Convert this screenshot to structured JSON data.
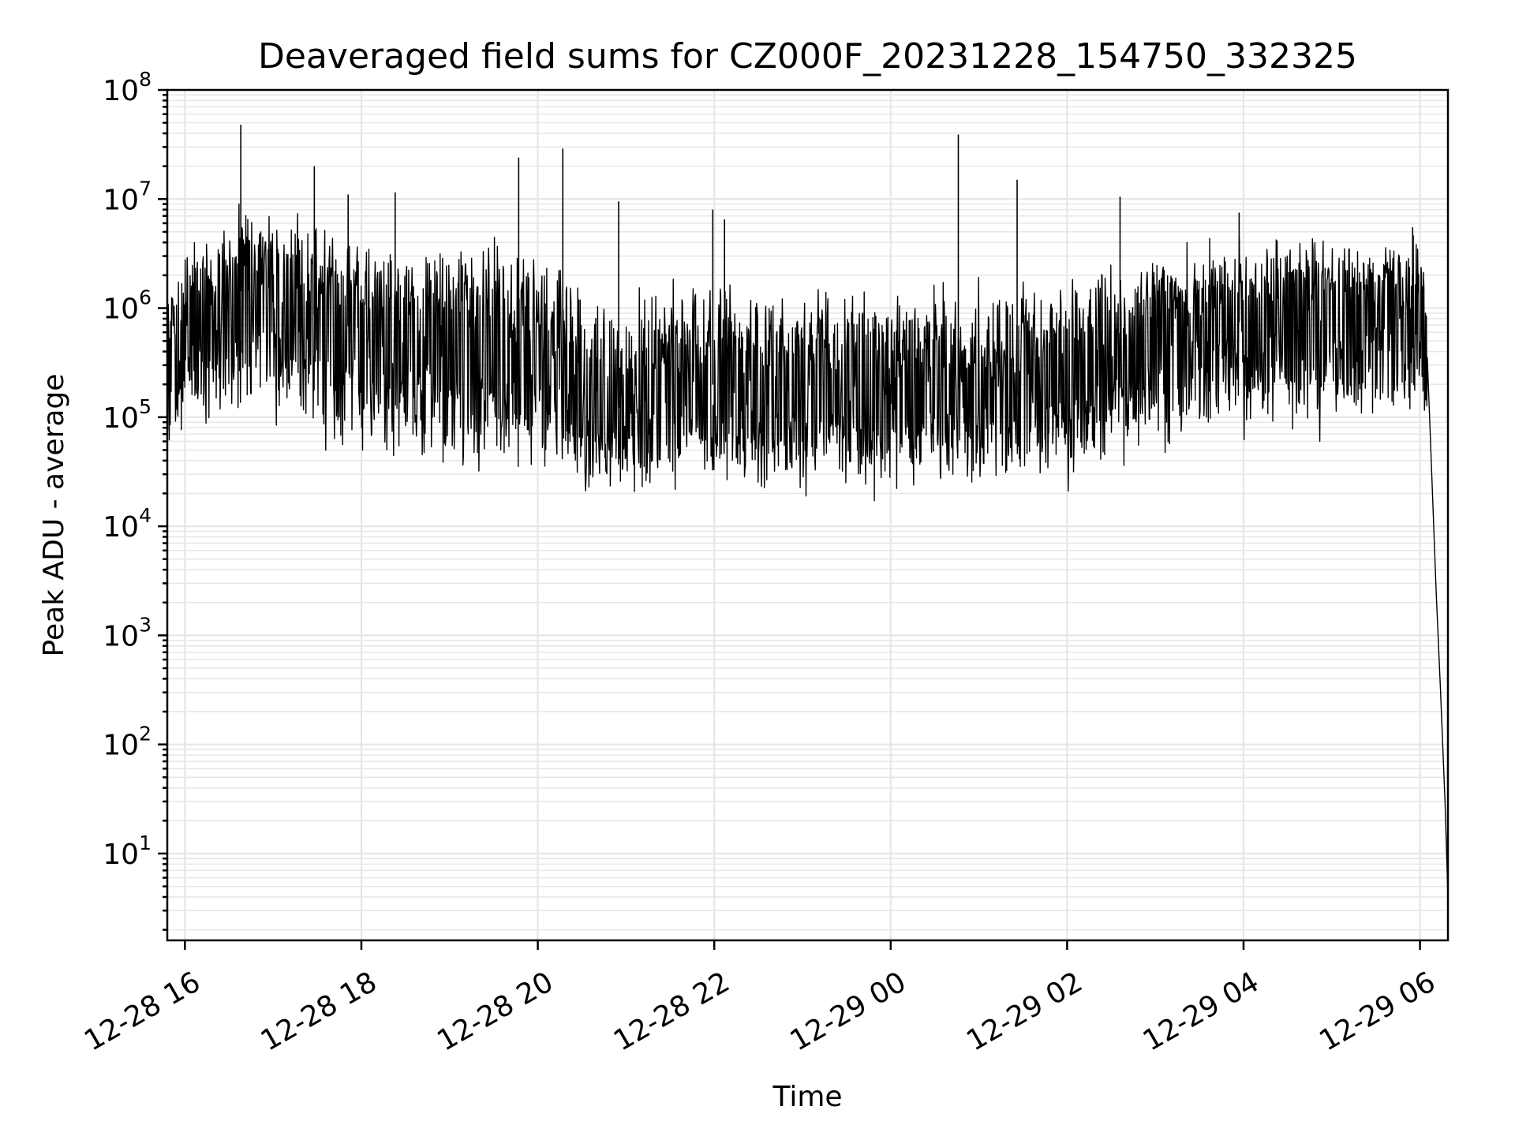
{
  "chart_data": {
    "type": "line",
    "title": "Deaveraged field sums for CZ000F_20231228_154750_332325",
    "xlabel": "Time",
    "ylabel": "Peak ADU - average",
    "yscale": "log",
    "ylim": [
      1.6,
      100000000
    ],
    "xlim": [
      "2023-12-28 15:48",
      "2023-12-29 06:19"
    ],
    "x_ticks": [
      {
        "t": "2023-12-28 16:00",
        "label": "12-28 16"
      },
      {
        "t": "2023-12-28 18:00",
        "label": "12-28 18"
      },
      {
        "t": "2023-12-28 20:00",
        "label": "12-28 20"
      },
      {
        "t": "2023-12-28 22:00",
        "label": "12-28 22"
      },
      {
        "t": "2023-12-29 00:00",
        "label": "12-29 00"
      },
      {
        "t": "2023-12-29 02:00",
        "label": "12-29 02"
      },
      {
        "t": "2023-12-29 04:00",
        "label": "12-29 04"
      },
      {
        "t": "2023-12-29 06:00",
        "label": "12-29 06"
      }
    ],
    "y_ticks": [
      {
        "value": 10,
        "base": "10",
        "exp": "1"
      },
      {
        "value": 100,
        "base": "10",
        "exp": "2"
      },
      {
        "value": 1000,
        "base": "10",
        "exp": "3"
      },
      {
        "value": 10000,
        "base": "10",
        "exp": "4"
      },
      {
        "value": 100000,
        "base": "10",
        "exp": "5"
      },
      {
        "value": 1000000,
        "base": "10",
        "exp": "6"
      },
      {
        "value": 10000000,
        "base": "10",
        "exp": "7"
      },
      {
        "value": 100000000,
        "base": "10",
        "exp": "8"
      }
    ],
    "grid": true,
    "line_color": "#000000",
    "series": [
      {
        "x": [
          "2023-12-28 15:48",
          "2023-12-28 16:00",
          "2023-12-28 16:20",
          "2023-12-28 16:40",
          "2023-12-28 17:00",
          "2023-12-28 17:20",
          "2023-12-28 17:40",
          "2023-12-28 18:00",
          "2023-12-28 18:20",
          "2023-12-28 18:40",
          "2023-12-28 19:00",
          "2023-12-28 19:20",
          "2023-12-28 19:40",
          "2023-12-28 20:00",
          "2023-12-28 20:20",
          "2023-12-28 20:40",
          "2023-12-28 21:00",
          "2023-12-28 21:20",
          "2023-12-28 21:40",
          "2023-12-28 22:00",
          "2023-12-28 22:20",
          "2023-12-28 22:40",
          "2023-12-28 23:00",
          "2023-12-28 23:20",
          "2023-12-28 23:40",
          "2023-12-29 00:00",
          "2023-12-29 00:20",
          "2023-12-29 00:40",
          "2023-12-29 01:00",
          "2023-12-29 01:20",
          "2023-12-29 01:40",
          "2023-12-29 02:00",
          "2023-12-29 02:20",
          "2023-12-29 02:40",
          "2023-12-29 03:00",
          "2023-12-29 03:20",
          "2023-12-29 03:40",
          "2023-12-29 04:00",
          "2023-12-29 04:20",
          "2023-12-29 04:40",
          "2023-12-29 05:00",
          "2023-12-29 05:20",
          "2023-12-29 05:40",
          "2023-12-29 06:00",
          "2023-12-29 06:05",
          "2023-12-29 06:08",
          "2023-12-29 06:11",
          "2023-12-29 06:14",
          "2023-12-29 06:17",
          "2023-12-29 06:19"
        ],
        "y": [
          200000,
          700000,
          900000,
          1500000,
          1200000,
          900000,
          800000,
          600000,
          550000,
          500000,
          450000,
          400000,
          380000,
          320000,
          200000,
          130000,
          120000,
          150000,
          180000,
          200000,
          170000,
          160000,
          150000,
          170000,
          140000,
          130000,
          150000,
          200000,
          150000,
          150000,
          180000,
          250000,
          300000,
          400000,
          500000,
          600000,
          700000,
          750000,
          800000,
          900000,
          850000,
          900000,
          1000000,
          700000,
          200000,
          30000,
          2500,
          300,
          30,
          4
        ],
        "band_low": [
          40000,
          100000,
          120000,
          150000,
          120000,
          100000,
          80000,
          70000,
          60000,
          60000,
          55000,
          50000,
          50000,
          45000,
          30000,
          25000,
          25000,
          28000,
          30000,
          30000,
          28000,
          28000,
          28000,
          30000,
          28000,
          30000,
          30000,
          32000,
          30000,
          30000,
          35000,
          40000,
          50000,
          60000,
          70000,
          80000,
          90000,
          100000,
          100000,
          110000,
          100000,
          110000,
          120000,
          150000,
          100000
        ],
        "band_high": [
          1000000,
          3000000,
          4000000,
          6000000,
          5000000,
          4500000,
          4000000,
          3500000,
          3000000,
          3000000,
          2800000,
          2500000,
          2800000,
          2200000,
          1500000,
          1000000,
          900000,
          1000000,
          1200000,
          1500000,
          1300000,
          1200000,
          1100000,
          1200000,
          1100000,
          1000000,
          1100000,
          1200000,
          1100000,
          1200000,
          1200000,
          1500000,
          1800000,
          2000000,
          2500000,
          2800000,
          3000000,
          3200000,
          3500000,
          3800000,
          3500000,
          3500000,
          4000000,
          4000000,
          1200000
        ],
        "spikes": [
          {
            "t": "2023-12-28 16:38",
            "y": 48000000
          },
          {
            "t": "2023-12-28 17:28",
            "y": 20000000
          },
          {
            "t": "2023-12-28 17:51",
            "y": 11000000
          },
          {
            "t": "2023-12-28 18:23",
            "y": 11500000
          },
          {
            "t": "2023-12-28 19:47",
            "y": 24000000
          },
          {
            "t": "2023-12-28 20:17",
            "y": 29000000
          },
          {
            "t": "2023-12-28 20:55",
            "y": 9500000
          },
          {
            "t": "2023-12-28 21:59",
            "y": 8000000
          },
          {
            "t": "2023-12-28 22:07",
            "y": 6500000
          },
          {
            "t": "2023-12-29 00:46",
            "y": 39000000
          },
          {
            "t": "2023-12-29 01:26",
            "y": 15000000
          },
          {
            "t": "2023-12-29 02:36",
            "y": 10500000
          },
          {
            "t": "2023-12-29 03:57",
            "y": 7500000
          },
          {
            "t": "2023-12-29 05:55",
            "y": 5500000
          }
        ]
      }
    ]
  }
}
